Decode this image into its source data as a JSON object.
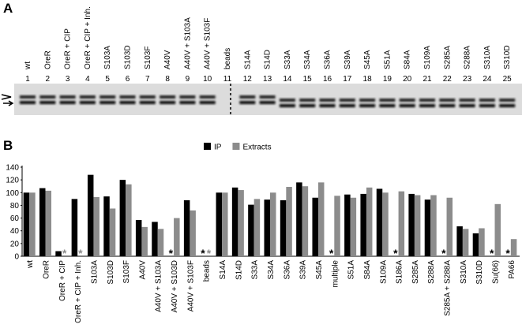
{
  "panel_a": {
    "label": "A",
    "lanes": [
      "wt",
      "OreR",
      "OreR + CIP",
      "OreR + CIP + Inh.",
      "S103A",
      "S103D",
      "S103F",
      "A40V",
      "A40V + S103A",
      "A40V + S103F",
      "beads",
      "S14A",
      "S14D",
      "S33A",
      "S34A",
      "S36A",
      "S39A",
      "S45A",
      "S51A",
      "S84A",
      "S109A",
      "S285A",
      "S288A",
      "S310A",
      "S310D"
    ],
    "numbers": [
      1,
      2,
      3,
      4,
      5,
      6,
      7,
      8,
      9,
      10,
      11,
      12,
      13,
      14,
      15,
      16,
      17,
      18,
      19,
      20,
      21,
      22,
      23,
      24,
      25
    ]
  },
  "chart_data": {
    "type": "bar",
    "panel_label": "B",
    "categories": [
      "wt",
      "OreR",
      "OreR + CIP",
      "OreR + CIP + Inh.",
      "S103A",
      "S103D",
      "S103F",
      "A40V",
      "A40V + S103A",
      "A40V + S103D",
      "A40V + S103F",
      "beads",
      "S14A",
      "S14D",
      "S33A",
      "S34A",
      "S36A",
      "S39A",
      "S45A",
      "multiple",
      "S51A",
      "S84A",
      "S109A",
      "S186A",
      "S285A",
      "S288A",
      "S285A + S288A",
      "S310A",
      "S310D",
      "Su(66)",
      "PA66"
    ],
    "series": [
      {
        "name": "IP",
        "color": "#000000",
        "values": [
          100,
          107,
          8,
          90,
          128,
          94,
          120,
          57,
          54,
          null,
          88,
          null,
          100,
          108,
          81,
          89,
          88,
          116,
          92,
          null,
          97,
          98,
          106,
          null,
          98,
          89,
          null,
          47,
          36,
          null,
          null
        ]
      },
      {
        "name": "Extracts",
        "color": "#8c8c8c",
        "values": [
          100,
          103,
          null,
          null,
          93,
          75,
          113,
          46,
          43,
          60,
          72,
          null,
          100,
          104,
          90,
          100,
          109,
          110,
          116,
          95,
          92,
          108,
          100,
          102,
          96,
          96,
          92,
          43,
          44,
          82,
          27
        ]
      }
    ],
    "missing_marker": "*",
    "ylim": [
      0,
      140
    ],
    "yticks": [
      0,
      20,
      40,
      60,
      80,
      100,
      120,
      140
    ],
    "legend": "top"
  }
}
